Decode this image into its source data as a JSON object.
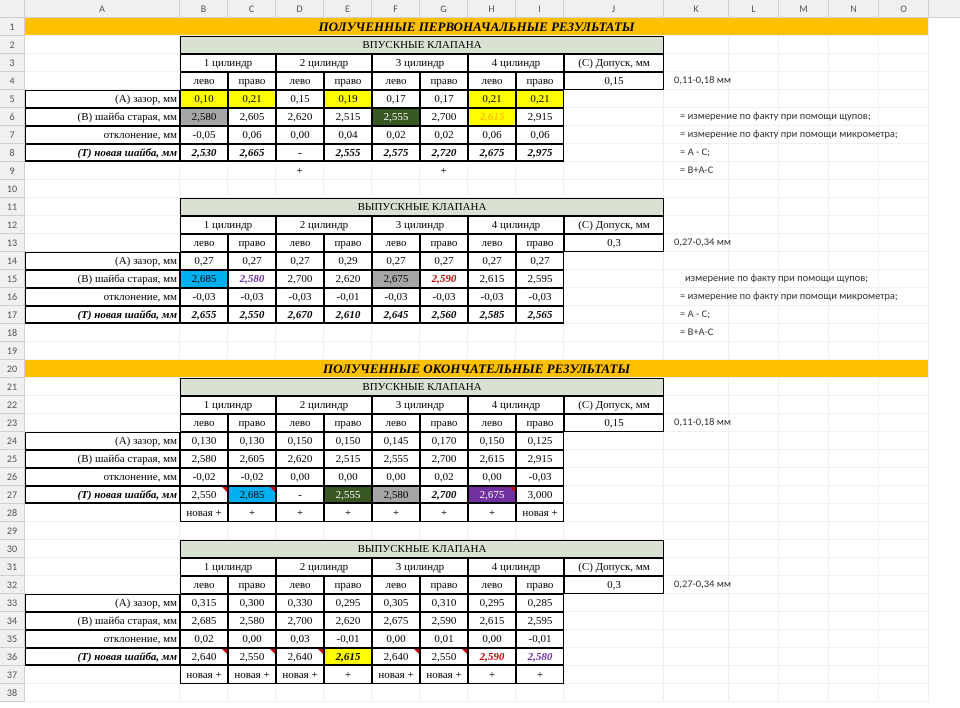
{
  "cols": {
    "A": 155,
    "B": 48,
    "C": 48,
    "D": 48,
    "E": 48,
    "F": 48,
    "G": 48,
    "H": 48,
    "I": 48,
    "J": 100,
    "K": 65,
    "L": 50,
    "M": 50,
    "N": 50,
    "O": 50
  },
  "titles": {
    "t1": "ПОЛУЧЕННЫЕ ПЕРВОНАЧАЛЬНЫЕ РЕЗУЛЬТАТЫ",
    "t2": "ПОЛУЧЕННЫЕ ОКОНЧАТЕЛЬНЫЕ РЕЗУЛЬТАТЫ",
    "in": "ВПУСКНЫЕ КЛАПАНА",
    "ex": "ВЫПУСКНЫЕ КЛАПАНА",
    "cyl1": "1 цилиндр",
    "cyl2": "2 цилиндр",
    "cyl3": "3 цилиндр",
    "cyl4": "4 цилиндр",
    "tol": "(C) Допуск, мм",
    "left": "лево",
    "right": "право",
    "rA": "(A) зазор, мм",
    "rB": "(B) шайба старая, мм",
    "rD": "отклонение, мм",
    "rT": "(T) новая шайба, мм",
    "tolIn": "0,11-0,18 мм",
    "tolEx": "0,27-0,34 мм",
    "valIn": "0,15",
    "valEx": "0,3",
    "noteA": "= измерение по факту при помощи щупов;",
    "noteB": "= измерение по факту при помощи микрометра;",
    "noteA2": "измерение по факту при помощи щупов;",
    "noteC": "= A - C;",
    "noteT": "= B+A-C",
    "plus": "+",
    "novp": "новая +",
    "dash": "-"
  },
  "block1": {
    "A": [
      "0,10",
      "0,21",
      "0,15",
      "0,19",
      "0,17",
      "0,17",
      "0,21",
      "0,21"
    ],
    "B": [
      "2,580",
      "2,605",
      "2,620",
      "2,515",
      "2,555",
      "2,700",
      "2,615",
      "2,915"
    ],
    "D": [
      "-0,05",
      "0,06",
      "0,00",
      "0,04",
      "0,02",
      "0,02",
      "0,06",
      "0,06"
    ],
    "T": [
      "2,530",
      "2,665",
      "-",
      "2,555",
      "2,575",
      "2,720",
      "2,675",
      "2,975"
    ],
    "M": [
      "",
      "",
      "+",
      "",
      "",
      "+",
      "",
      ""
    ]
  },
  "block2": {
    "A": [
      "0,27",
      "0,27",
      "0,27",
      "0,29",
      "0,27",
      "0,27",
      "0,27",
      "0,27"
    ],
    "B": [
      "2,685",
      "2,580",
      "2,700",
      "2,620",
      "2,675",
      "2,590",
      "2,615",
      "2,595"
    ],
    "D": [
      "-0,03",
      "-0,03",
      "-0,03",
      "-0,01",
      "-0,03",
      "-0,03",
      "-0,03",
      "-0,03"
    ],
    "T": [
      "2,655",
      "2,550",
      "2,670",
      "2,610",
      "2,645",
      "2,560",
      "2,585",
      "2,565"
    ]
  },
  "block3": {
    "A": [
      "0,130",
      "0,130",
      "0,150",
      "0,150",
      "0,145",
      "0,170",
      "0,150",
      "0,125"
    ],
    "B": [
      "2,580",
      "2,605",
      "2,620",
      "2,515",
      "2,555",
      "2,700",
      "2,615",
      "2,915"
    ],
    "D": [
      "-0,02",
      "-0,02",
      "0,00",
      "0,00",
      "0,00",
      "0,02",
      "0,00",
      "-0,03"
    ],
    "T": [
      "2,550",
      "2,685",
      "-",
      "2,555",
      "2,580",
      "2,700",
      "2,675",
      "3,000"
    ],
    "M": [
      "новая +",
      "+",
      "+",
      "+",
      "+",
      "+",
      "+",
      "новая +"
    ]
  },
  "block4": {
    "A": [
      "0,315",
      "0,300",
      "0,330",
      "0,295",
      "0,305",
      "0,310",
      "0,295",
      "0,285"
    ],
    "B": [
      "2,685",
      "2,580",
      "2,700",
      "2,620",
      "2,675",
      "2,590",
      "2,615",
      "2,595"
    ],
    "D": [
      "0,02",
      "0,00",
      "0,03",
      "-0,01",
      "0,00",
      "0,01",
      "0,00",
      "-0,01"
    ],
    "T": [
      "2,640",
      "2,550",
      "2,640",
      "2,615",
      "2,640",
      "2,550",
      "2,590",
      "2,580"
    ],
    "M": [
      "новая +",
      "новая +",
      "новая +",
      "+",
      "новая +",
      "новая +",
      "+",
      "+"
    ]
  },
  "styles": {
    "block1_A_hl": [
      "hl-yellow",
      "hl-yellow",
      "",
      "hl-yellow",
      "",
      "",
      "hl-yellow",
      "hl-yellow"
    ],
    "block1_B_hl": [
      "hl-gray",
      "",
      "",
      "",
      "hl-dgreen",
      "",
      "hl-yellow txt-yellow2",
      ""
    ],
    "block1_B6_cls": "txt-yellow2",
    "block2_B_hl": [
      "hl-cyan",
      "txt-purple",
      "",
      "",
      "hl-gray",
      "txt-red",
      "",
      ""
    ],
    "block3_T_hl": [
      "cell-rel",
      "hl-cyan cell-rel",
      "",
      "hl-dgreen",
      "hl-gray",
      "bi",
      "hl-purple cell-rel",
      ""
    ],
    "block4_T_hl": [
      "cell-rel",
      "cell-rel",
      "cell-rel",
      "hl-yellow bi",
      "cell-rel",
      "cell-rel",
      "txt-red",
      "txt-purple"
    ]
  }
}
